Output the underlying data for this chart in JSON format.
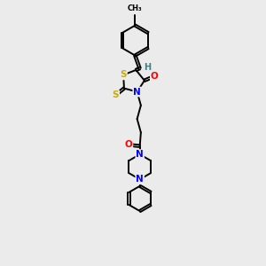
{
  "background_color": "#ebebeb",
  "atom_colors": {
    "S": "#ccaa00",
    "N": "#0000ff",
    "O": "#ff0000",
    "C": "#000000",
    "H": "#408080"
  },
  "bond_color": "#000000",
  "figsize": [
    3.0,
    3.0
  ],
  "dpi": 100,
  "xlim": [
    2.5,
    7.5
  ],
  "ylim": [
    0.0,
    12.5
  ]
}
